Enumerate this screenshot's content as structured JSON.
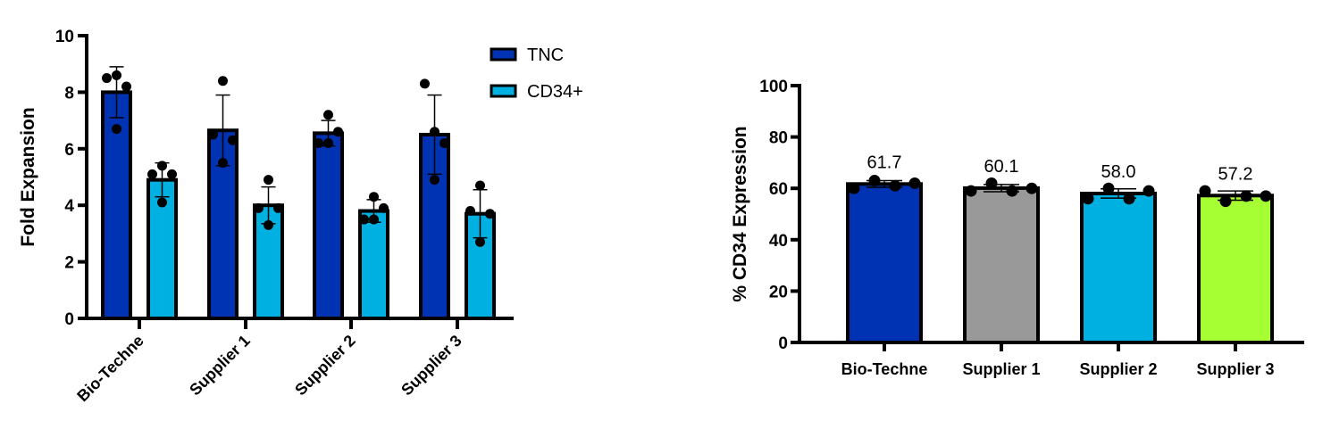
{
  "chart_data": [
    {
      "type": "bar",
      "ylabel": "Fold Expansion",
      "ylim": [
        0,
        10
      ],
      "yticks": [
        0,
        2,
        4,
        6,
        8,
        10
      ],
      "categories": [
        "Bio-Techne",
        "Supplier 1",
        "Supplier 2",
        "Supplier 3"
      ],
      "legend_position": "top-right",
      "series": [
        {
          "name": "TNC",
          "color": "#0033b3",
          "values": [
            8.0,
            6.65,
            6.55,
            6.5
          ],
          "sd": [
            0.9,
            1.25,
            0.45,
            1.4
          ],
          "points": [
            [
              8.5,
              8.6,
              8.2,
              6.7
            ],
            [
              6.5,
              8.4,
              6.3,
              5.5
            ],
            [
              6.2,
              7.2,
              6.6,
              6.2
            ],
            [
              8.3,
              6.6,
              6.2,
              4.9
            ]
          ]
        },
        {
          "name": "CD34+",
          "color": "#00b0e0",
          "values": [
            4.9,
            4.0,
            3.8,
            3.7
          ],
          "sd": [
            0.6,
            0.65,
            0.4,
            0.85
          ],
          "points": [
            [
              5.1,
              5.4,
              5.1,
              4.1
            ],
            [
              3.9,
              4.9,
              3.9,
              3.3
            ],
            [
              3.5,
              4.3,
              3.9,
              3.5
            ],
            [
              3.8,
              4.7,
              3.7,
              2.7
            ]
          ]
        }
      ]
    },
    {
      "type": "bar",
      "ylabel": "% CD34 Expression",
      "ylim": [
        0,
        100
      ],
      "yticks": [
        0,
        20,
        40,
        60,
        80,
        100
      ],
      "categories": [
        "Bio-Techne",
        "Supplier 1",
        "Supplier 2",
        "Supplier 3"
      ],
      "values": [
        61.7,
        60.1,
        58.0,
        57.2
      ],
      "data_labels": [
        "61.7",
        "60.1",
        "58.0",
        "57.2"
      ],
      "sd": [
        1.3,
        1.4,
        1.8,
        1.8
      ],
      "colors": [
        "#0033b3",
        "#999999",
        "#00b0e0",
        "#a6ff33"
      ],
      "points": [
        [
          60,
          63,
          61,
          62
        ],
        [
          59,
          62,
          59,
          60
        ],
        [
          56,
          60,
          56,
          59
        ],
        [
          59,
          55,
          57,
          57
        ]
      ]
    }
  ]
}
